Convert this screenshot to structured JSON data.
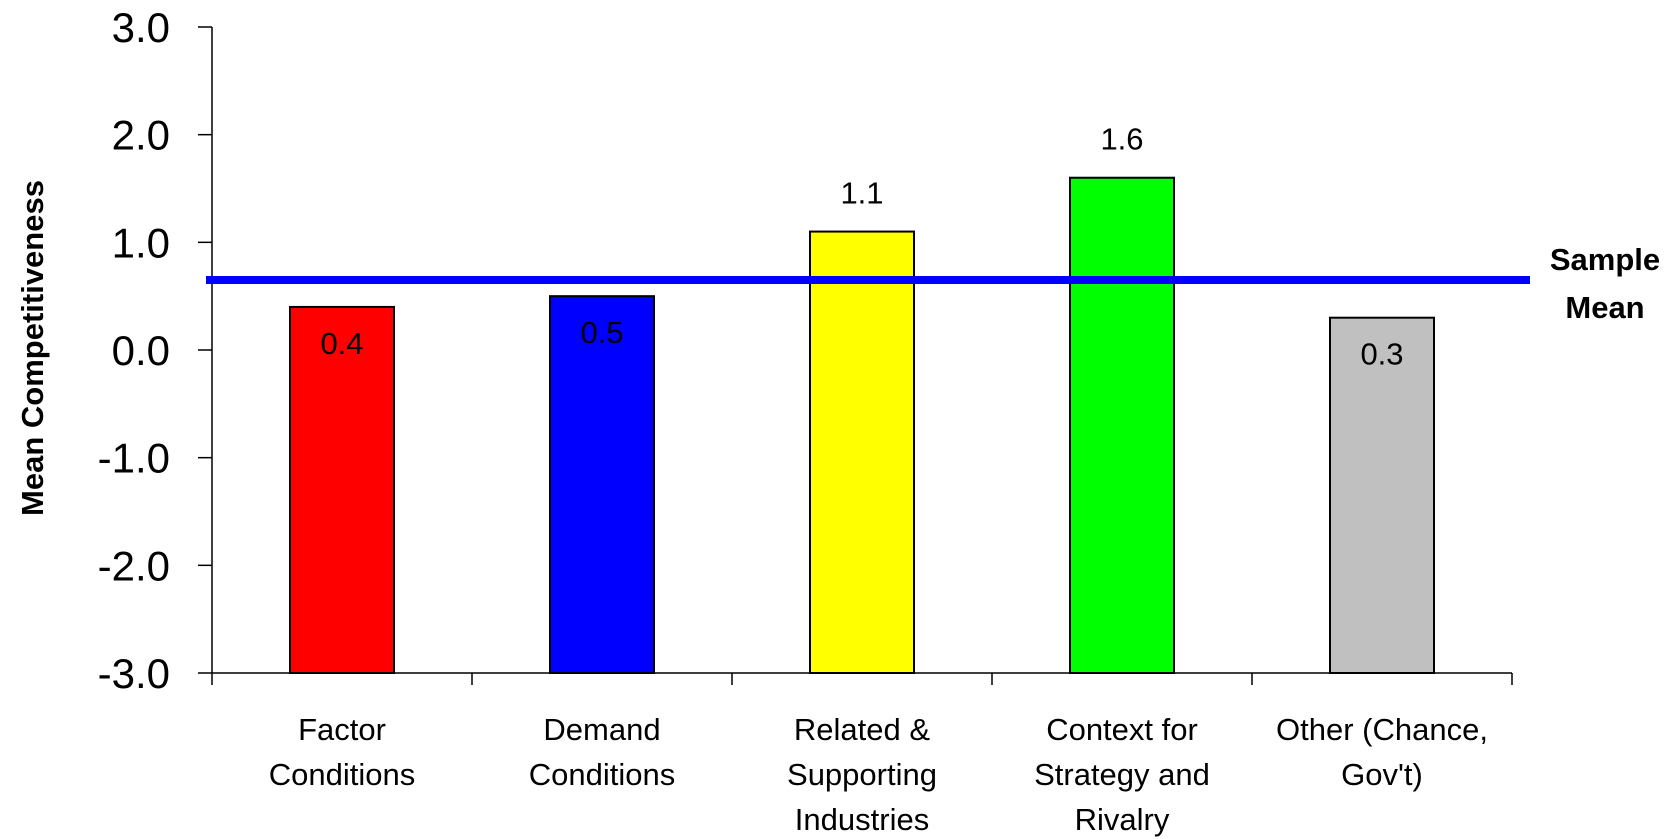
{
  "chart_data": {
    "type": "bar",
    "categories": [
      [
        "Factor",
        "Conditions"
      ],
      [
        "Demand",
        "Conditions"
      ],
      [
        "Related &",
        "Supporting",
        "Industries"
      ],
      [
        "Context for",
        "Strategy and",
        "Rivalry"
      ],
      [
        "Other (Chance,",
        "Gov't)"
      ]
    ],
    "values": [
      0.4,
      0.5,
      1.1,
      1.6,
      0.3
    ],
    "data_labels": [
      "0.4",
      "0.5",
      "1.1",
      "1.6",
      "0.3"
    ],
    "bar_colors": [
      "#ff0000",
      "#0000ff",
      "#ffff00",
      "#00ff00",
      "#c0c0c0"
    ],
    "ylabel": "Mean Competitiveness",
    "ylim": [
      -3.0,
      3.0
    ],
    "yticks": [
      "3.0",
      "2.0",
      "1.0",
      "0.0",
      "-1.0",
      "-2.0",
      "-3.0"
    ],
    "grid": false,
    "reference_line": {
      "value": 0.65,
      "label": [
        "Sample",
        "Mean"
      ],
      "color": "#0000ff"
    }
  }
}
